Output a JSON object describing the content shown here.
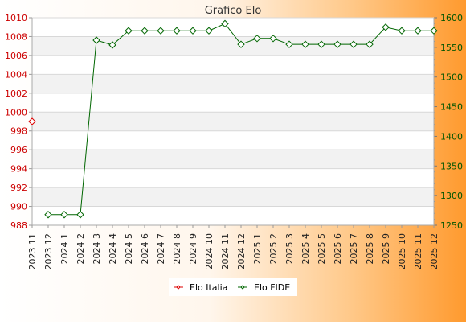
{
  "chart_data": {
    "type": "line",
    "title": "Grafico Elo",
    "x": [
      "2023 11",
      "2023 12",
      "2024 1",
      "2024 2",
      "2024 3",
      "2024 4",
      "2024 5",
      "2024 6",
      "2024 7",
      "2024 8",
      "2024 9",
      "2024 10",
      "2024 11",
      "2024 12",
      "2025 1",
      "2025 2",
      "2025 3",
      "2025 4",
      "2025 5",
      "2025 6",
      "2025 7",
      "2025 8",
      "2025 9",
      "2025 10",
      "2025 11",
      "2025 12"
    ],
    "y_left": {
      "min": 988,
      "max": 1010,
      "ticks": [
        "988",
        "990",
        "992",
        "994",
        "996",
        "998",
        "1000",
        "1002",
        "1004",
        "1006",
        "1008",
        "1010"
      ]
    },
    "y_right": {
      "min": 1250,
      "max": 1600,
      "ticks": [
        "1250",
        "1300",
        "1350",
        "1400",
        "1450",
        "1500",
        "1550",
        "1600"
      ]
    },
    "grid": true,
    "legend_position": "bottom-center",
    "series": [
      {
        "name": "Elo Italia",
        "axis": "left",
        "color": "#dd0000",
        "values": [
          999,
          null,
          null,
          null,
          null,
          null,
          null,
          null,
          null,
          null,
          null,
          null,
          null,
          null,
          null,
          null,
          null,
          null,
          null,
          null,
          null,
          null,
          null,
          null,
          null,
          null
        ]
      },
      {
        "name": "Elo FIDE",
        "axis": "right",
        "color": "#006600",
        "values": [
          null,
          1268,
          1268,
          1268,
          1562,
          1554,
          1578,
          1578,
          1578,
          1578,
          1578,
          1578,
          1590,
          1555,
          1565,
          1565,
          1555,
          1555,
          1555,
          1555,
          1555,
          1555,
          1584,
          1578,
          1578,
          1578
        ]
      }
    ]
  }
}
